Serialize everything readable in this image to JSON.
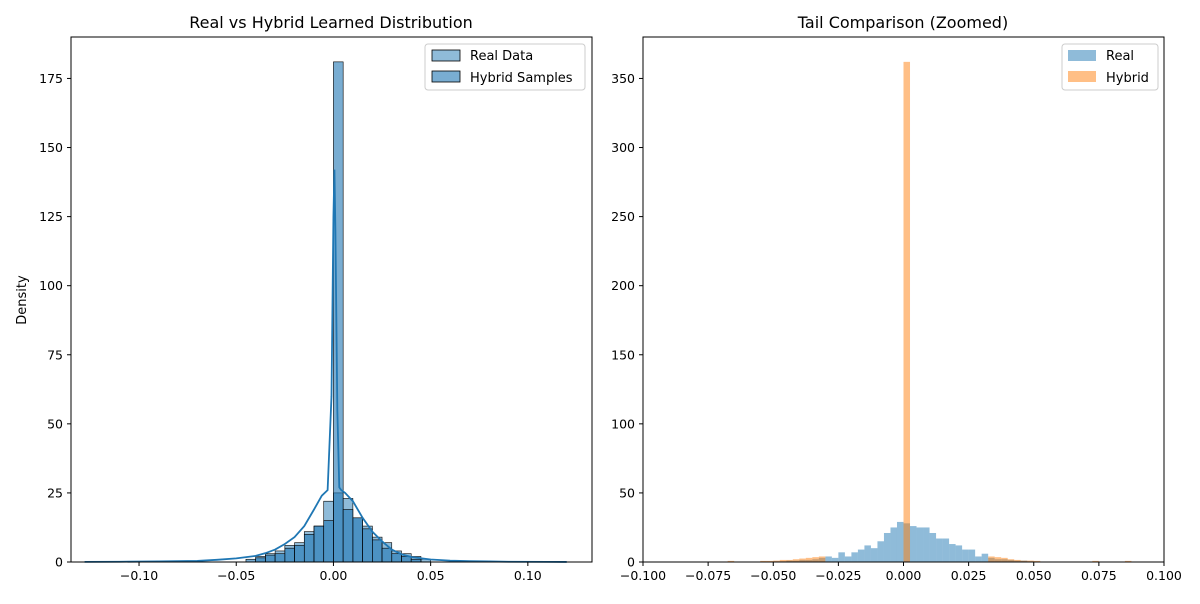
{
  "chart_data": [
    {
      "type": "bar",
      "title": "Real vs Hybrid Learned Distribution",
      "xlabel": "",
      "ylabel": "Density",
      "xlim": [
        -0.135,
        0.133
      ],
      "ylim": [
        0,
        190
      ],
      "xticks": [
        -0.1,
        -0.05,
        0.0,
        0.05,
        0.1
      ],
      "xtick_labels": [
        "−0.10",
        "−0.05",
        "0.00",
        "0.05",
        "0.10"
      ],
      "yticks": [
        0,
        25,
        50,
        75,
        100,
        125,
        150,
        175
      ],
      "legend_position": "upper right",
      "legend": [
        "Real Data",
        "Hybrid Samples"
      ],
      "colors": {
        "real": "#1f77b4",
        "hybrid": "#1f77b4",
        "kde": "#1f77b4"
      },
      "series": [
        {
          "name": "Real Data",
          "kind": "histogram",
          "bin_width": 0.005,
          "bins": [
            [
              -0.04,
              2
            ],
            [
              -0.035,
              3
            ],
            [
              -0.03,
              4
            ],
            [
              -0.025,
              6
            ],
            [
              -0.02,
              7
            ],
            [
              -0.015,
              11
            ],
            [
              -0.01,
              13
            ],
            [
              -0.005,
              22
            ],
            [
              0.0,
              25
            ],
            [
              0.005,
              23
            ],
            [
              0.01,
              16
            ],
            [
              0.015,
              13
            ],
            [
              0.02,
              9
            ],
            [
              0.025,
              7
            ],
            [
              0.03,
              4
            ],
            [
              0.035,
              3
            ],
            [
              0.04,
              2
            ],
            [
              0.045,
              1
            ]
          ]
        },
        {
          "name": "Hybrid Samples",
          "kind": "histogram",
          "bin_width": 0.005,
          "bins": [
            [
              -0.045,
              1
            ],
            [
              -0.04,
              1.5
            ],
            [
              -0.035,
              2.5
            ],
            [
              -0.03,
              3
            ],
            [
              -0.025,
              5
            ],
            [
              -0.02,
              6
            ],
            [
              -0.015,
              10
            ],
            [
              -0.01,
              13
            ],
            [
              -0.005,
              15
            ],
            [
              0.0,
              181
            ],
            [
              0.005,
              19
            ],
            [
              0.01,
              16
            ],
            [
              0.015,
              12
            ],
            [
              0.02,
              8
            ],
            [
              0.025,
              5
            ],
            [
              0.03,
              3
            ],
            [
              0.035,
              2
            ],
            [
              0.04,
              1
            ]
          ]
        },
        {
          "name": "KDE",
          "kind": "line",
          "x": [
            -0.128,
            -0.11,
            -0.09,
            -0.07,
            -0.06,
            -0.05,
            -0.04,
            -0.035,
            -0.03,
            -0.025,
            -0.02,
            -0.015,
            -0.01,
            -0.006,
            -0.003,
            -0.001,
            0.0,
            0.0005,
            0.001,
            0.002,
            0.003,
            0.004,
            0.006,
            0.01,
            0.015,
            0.02,
            0.025,
            0.03,
            0.035,
            0.04,
            0.05,
            0.06,
            0.07,
            0.08,
            0.09,
            0.11,
            0.12
          ],
          "y": [
            0.05,
            0.1,
            0.2,
            0.4,
            0.8,
            1.3,
            2.2,
            3.2,
            4.5,
            6.5,
            9,
            13,
            19,
            24,
            26,
            60,
            125,
            142,
            120,
            55,
            27,
            26,
            25,
            22,
            16,
            11,
            7.5,
            4.5,
            2.8,
            1.8,
            0.9,
            0.5,
            0.3,
            0.2,
            0.1,
            0.05,
            0.02
          ]
        }
      ]
    },
    {
      "type": "bar",
      "title": "Tail Comparison (Zoomed)",
      "xlabel": "",
      "ylabel": "",
      "xlim": [
        -0.1,
        0.1
      ],
      "ylim": [
        0,
        380
      ],
      "xticks": [
        -0.1,
        -0.075,
        -0.05,
        -0.025,
        0.0,
        0.025,
        0.05,
        0.075,
        0.1
      ],
      "xtick_labels": [
        "−0.100",
        "−0.075",
        "−0.050",
        "−0.025",
        "0.000",
        "0.025",
        "0.050",
        "0.075",
        "0.100"
      ],
      "yticks": [
        0,
        50,
        100,
        150,
        200,
        250,
        300,
        350
      ],
      "legend_position": "upper right",
      "legend": [
        "Real",
        "Hybrid"
      ],
      "colors": {
        "real": "#1f77b4",
        "hybrid": "#ff7f0e"
      },
      "series": [
        {
          "name": "Real",
          "kind": "histogram",
          "bin_width": 0.0025,
          "bins": [
            [
              -0.05,
              0.5
            ],
            [
              -0.0475,
              0.5
            ],
            [
              -0.045,
              1
            ],
            [
              -0.0425,
              1
            ],
            [
              -0.04,
              1.5
            ],
            [
              -0.0375,
              1.5
            ],
            [
              -0.035,
              2
            ],
            [
              -0.0325,
              3
            ],
            [
              -0.03,
              4
            ],
            [
              -0.0275,
              3
            ],
            [
              -0.025,
              7
            ],
            [
              -0.0225,
              4
            ],
            [
              -0.02,
              7
            ],
            [
              -0.0175,
              9
            ],
            [
              -0.015,
              12
            ],
            [
              -0.0125,
              10
            ],
            [
              -0.01,
              15
            ],
            [
              -0.0075,
              21
            ],
            [
              -0.005,
              25
            ],
            [
              -0.0025,
              29
            ],
            [
              0.0,
              28
            ],
            [
              0.0025,
              26
            ],
            [
              0.005,
              25
            ],
            [
              0.0075,
              25
            ],
            [
              0.01,
              21
            ],
            [
              0.0125,
              17
            ],
            [
              0.015,
              17
            ],
            [
              0.0175,
              13
            ],
            [
              0.02,
              12
            ],
            [
              0.0225,
              9
            ],
            [
              0.025,
              9
            ],
            [
              0.0275,
              4
            ],
            [
              0.03,
              6
            ],
            [
              0.0325,
              3
            ],
            [
              0.035,
              2
            ],
            [
              0.0375,
              2
            ],
            [
              0.04,
              1.5
            ],
            [
              0.0425,
              1
            ],
            [
              0.045,
              1
            ],
            [
              0.0475,
              0.5
            ]
          ]
        },
        {
          "name": "Hybrid",
          "kind": "histogram",
          "bin_width": 0.0025,
          "bins": [
            [
              -0.0675,
              0.8
            ],
            [
              -0.055,
              0.8
            ],
            [
              -0.0525,
              0.8
            ],
            [
              -0.05,
              1
            ],
            [
              -0.0475,
              1.5
            ],
            [
              -0.045,
              1.5
            ],
            [
              -0.0425,
              2
            ],
            [
              -0.04,
              2.5
            ],
            [
              -0.0375,
              3
            ],
            [
              -0.035,
              3.5
            ],
            [
              -0.0325,
              4
            ],
            [
              0.0,
              362
            ],
            [
              0.0325,
              4
            ],
            [
              0.035,
              3.5
            ],
            [
              0.0375,
              3
            ],
            [
              0.04,
              2
            ],
            [
              0.0425,
              1.5
            ],
            [
              0.045,
              1
            ],
            [
              0.0475,
              1
            ],
            [
              0.05,
              0.8
            ],
            [
              0.0725,
              0.8
            ],
            [
              0.085,
              0.8
            ]
          ]
        }
      ]
    }
  ]
}
